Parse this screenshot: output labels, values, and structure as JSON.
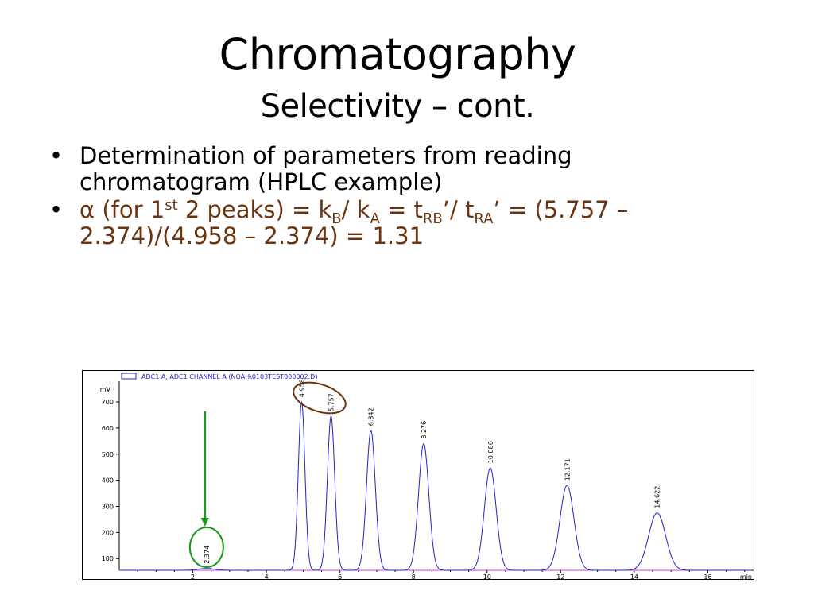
{
  "slide": {
    "title": "Chromatography",
    "subtitle": "Selectivity – cont."
  },
  "bullets": {
    "item1": "Determination of parameters from reading chromatogram (HPLC example)",
    "item2": {
      "alpha": "α",
      "p1": " (for 1",
      "sup_st": "st",
      "p2": " 2 peaks) = k",
      "sub_B": "B",
      "p3": "/ k",
      "sub_A": "A",
      "p4": " = t",
      "sub_RB": "RB",
      "p5": "’/ t",
      "sub_RA": "RA",
      "p6": "’ = (5.757 – 2.374)/(4.958 – 2.374) = 1.31"
    }
  },
  "colors": {
    "trace": "#2222cc",
    "baseline": "#d040d0",
    "green_marker": "#1a9a1a",
    "brown_marker": "#6b3410",
    "text_brown": "#6b3410"
  },
  "chart_data": {
    "type": "line",
    "title": "",
    "legend": "ADC1 A, ADC1 CHANNEL A (NOAH\\0103TEST000002.D)",
    "xlabel": "min",
    "ylabel": "mV",
    "xlim": [
      0,
      17.2
    ],
    "ylim": [
      55,
      755
    ],
    "baseline_mV": 55,
    "xticks": [
      2,
      4,
      6,
      8,
      10,
      12,
      14,
      16
    ],
    "yticks": [
      100,
      200,
      300,
      400,
      500,
      600,
      700
    ],
    "peaks": [
      {
        "rt": 2.374,
        "label": "2.374",
        "height": 62,
        "width": 0.22
      },
      {
        "rt": 4.958,
        "label": "4.958",
        "height": 700,
        "width": 0.09
      },
      {
        "rt": 5.757,
        "label": "5.757",
        "height": 645,
        "width": 0.1
      },
      {
        "rt": 6.842,
        "label": "6.842",
        "height": 590,
        "width": 0.12
      },
      {
        "rt": 8.276,
        "label": "8.276",
        "height": 540,
        "width": 0.14
      },
      {
        "rt": 10.086,
        "label": "10.086",
        "height": 447,
        "width": 0.16
      },
      {
        "rt": 12.171,
        "label": "12.171",
        "height": 380,
        "width": 0.19
      },
      {
        "rt": 14.622,
        "label": "14.622",
        "height": 275,
        "width": 0.23
      }
    ]
  }
}
